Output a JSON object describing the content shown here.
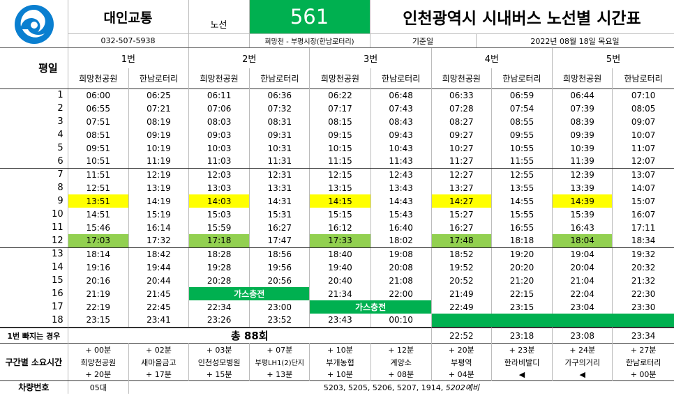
{
  "header": {
    "company": "대인교통",
    "phone": "032-507-5938",
    "route_label": "노선",
    "route_number": "561",
    "route_desc": "희망천 - 부평시장(한남로터리)",
    "title": "인천광역시 시내버스 노선별 시간표",
    "base_date_label": "기준일",
    "base_date": "2022년 08월 18일 목요일",
    "day_type": "평일"
  },
  "colors": {
    "green": "#00b050",
    "light_green": "#92d050",
    "yellow": "#ffff00"
  },
  "buses": [
    {
      "label": "1번",
      "from": "희망천공원",
      "to": "한남로터리"
    },
    {
      "label": "2번",
      "from": "희망천공원",
      "to": "한남로터리"
    },
    {
      "label": "3번",
      "from": "희망천공원",
      "to": "한남로터리"
    },
    {
      "label": "4번",
      "from": "희망천공원",
      "to": "한남로터리"
    },
    {
      "label": "5번",
      "from": "희망천공원",
      "to": "한남로터리"
    }
  ],
  "rows": [
    {
      "no": "1",
      "t": [
        "06:00",
        "06:25",
        "06:11",
        "06:36",
        "06:22",
        "06:48",
        "06:33",
        "06:59",
        "06:44",
        "07:10"
      ]
    },
    {
      "no": "2",
      "t": [
        "06:55",
        "07:21",
        "07:06",
        "07:32",
        "07:17",
        "07:43",
        "07:28",
        "07:54",
        "07:39",
        "08:05"
      ]
    },
    {
      "no": "3",
      "t": [
        "07:51",
        "08:19",
        "08:03",
        "08:31",
        "08:15",
        "08:43",
        "08:27",
        "08:55",
        "08:39",
        "09:07"
      ]
    },
    {
      "no": "4",
      "t": [
        "08:51",
        "09:19",
        "09:03",
        "09:31",
        "09:15",
        "09:43",
        "09:27",
        "09:55",
        "09:39",
        "10:07"
      ]
    },
    {
      "no": "5",
      "t": [
        "09:51",
        "10:19",
        "10:03",
        "10:31",
        "10:15",
        "10:43",
        "10:27",
        "10:55",
        "10:39",
        "11:07"
      ]
    },
    {
      "no": "6",
      "t": [
        "10:51",
        "11:19",
        "11:03",
        "11:31",
        "11:15",
        "11:43",
        "11:27",
        "11:55",
        "11:39",
        "12:07"
      ]
    },
    {
      "no": "7",
      "t": [
        "11:51",
        "12:19",
        "12:03",
        "12:31",
        "12:15",
        "12:43",
        "12:27",
        "12:55",
        "12:39",
        "13:07"
      ]
    },
    {
      "no": "8",
      "t": [
        "12:51",
        "13:19",
        "13:03",
        "13:31",
        "13:15",
        "13:43",
        "13:27",
        "13:55",
        "13:39",
        "14:07"
      ]
    },
    {
      "no": "9",
      "t": [
        "13:51",
        "14:19",
        "14:03",
        "14:31",
        "14:15",
        "14:43",
        "14:27",
        "14:55",
        "14:39",
        "15:07"
      ]
    },
    {
      "no": "10",
      "t": [
        "14:51",
        "15:19",
        "15:03",
        "15:31",
        "15:15",
        "15:43",
        "15:27",
        "15:55",
        "15:39",
        "16:07"
      ]
    },
    {
      "no": "11",
      "t": [
        "15:46",
        "16:14",
        "15:59",
        "16:27",
        "16:12",
        "16:40",
        "16:27",
        "16:55",
        "16:43",
        "17:11"
      ]
    },
    {
      "no": "12",
      "t": [
        "17:03",
        "17:32",
        "17:18",
        "17:47",
        "17:33",
        "18:02",
        "17:48",
        "18:18",
        "18:04",
        "18:34"
      ]
    },
    {
      "no": "13",
      "t": [
        "18:14",
        "18:42",
        "18:28",
        "18:56",
        "18:40",
        "19:08",
        "18:52",
        "19:20",
        "19:04",
        "19:32"
      ]
    },
    {
      "no": "14",
      "t": [
        "19:16",
        "19:44",
        "19:28",
        "19:56",
        "19:40",
        "20:08",
        "19:52",
        "20:20",
        "20:04",
        "20:32"
      ]
    },
    {
      "no": "15",
      "t": [
        "20:16",
        "20:44",
        "20:28",
        "20:56",
        "20:40",
        "21:08",
        "20:52",
        "21:20",
        "21:04",
        "21:32"
      ]
    },
    {
      "no": "16",
      "t": [
        "21:19",
        "21:45",
        "",
        "",
        "21:34",
        "22:00",
        "21:49",
        "22:15",
        "22:04",
        "22:30"
      ]
    },
    {
      "no": "17",
      "t": [
        "22:19",
        "22:45",
        "22:34",
        "23:00",
        "",
        "",
        "22:49",
        "23:15",
        "23:04",
        "23:30"
      ]
    },
    {
      "no": "18",
      "t": [
        "23:15",
        "23:41",
        "23:26",
        "23:52",
        "23:43",
        "00:10",
        "",
        "",
        "",
        ""
      ]
    }
  ],
  "gas_label": "가스충전",
  "skip": {
    "label": "1번 빠지는 경우",
    "total": "총 88회",
    "t": [
      "22:52",
      "23:18",
      "23:08",
      "23:34"
    ]
  },
  "segments": {
    "label": "구간별 소요시간",
    "top": [
      "+ 00분",
      "+ 02분",
      "+ 03분",
      "+ 07분",
      "+ 10분",
      "+ 12분",
      "+ 20분",
      "+ 23분",
      "+ 24분",
      "+ 27분"
    ],
    "stops": [
      "희망천공원",
      "새마을금고",
      "인천성모병원",
      "부평LH1(2)단지",
      "부개농협",
      "계양소",
      "부평역",
      "한라비발디",
      "가구의거리",
      "한남로터리"
    ],
    "bottom": [
      "+ 20분",
      "+ 17분",
      "+ 15분",
      "+ 13분",
      "+ 10분",
      "+ 08분",
      "+ 04분",
      "◀",
      "◀",
      "+ 00분"
    ]
  },
  "vehicles": {
    "label": "차량번호",
    "count": "05대",
    "list": "5203, 5205, 5206, 5207, 1914, ",
    "spare": "5202예비"
  }
}
